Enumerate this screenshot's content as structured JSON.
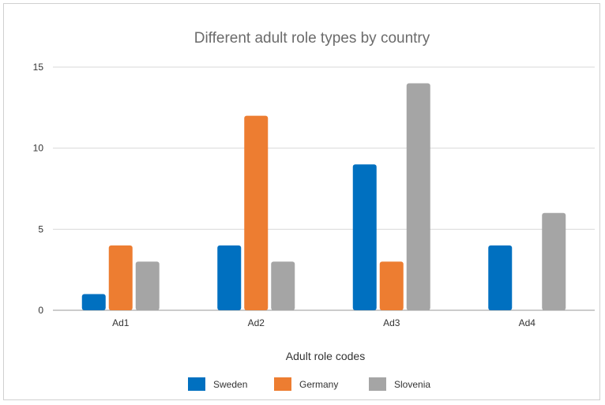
{
  "chart_data": {
    "type": "bar",
    "title": "Different adult role types by country",
    "xlabel": "Adult role codes",
    "ylabel": "",
    "categories": [
      "Ad1",
      "Ad2",
      "Ad3",
      "Ad4"
    ],
    "ylim": [
      0,
      15
    ],
    "yticks": [
      0,
      5,
      10,
      15
    ],
    "grid": true,
    "legend_position": "bottom",
    "series": [
      {
        "name": "Sweden",
        "color": "#0070c0",
        "values": [
          1,
          4,
          9,
          4
        ]
      },
      {
        "name": "Germany",
        "color": "#ed7d31",
        "values": [
          4,
          12,
          3,
          0
        ]
      },
      {
        "name": "Slovenia",
        "color": "#a5a5a5",
        "values": [
          3,
          3,
          14,
          6
        ]
      }
    ]
  }
}
